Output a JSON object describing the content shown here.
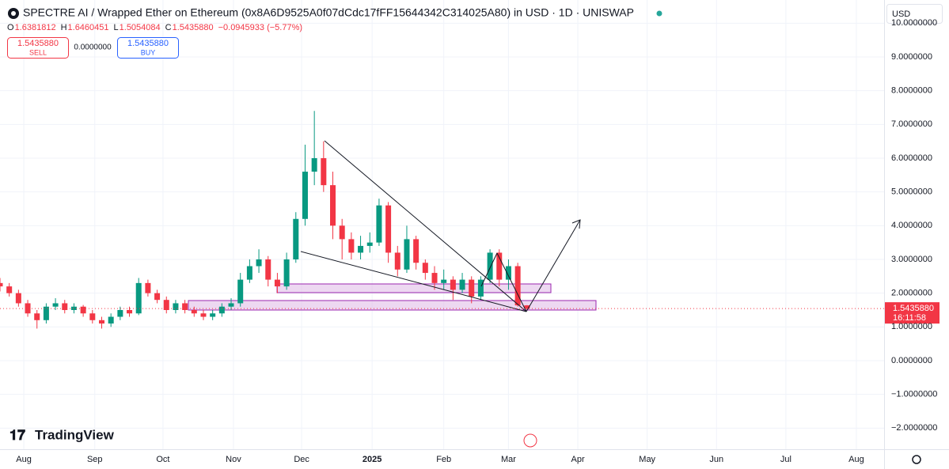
{
  "header": {
    "title": "SPECTRE AI / Wrapped Ether on Ethereum (0x8A6D9525A0f07dCdc17fFF15644342C314025A80) in USD · 1D · UNISWAP",
    "ohlc": [
      {
        "key": "O",
        "value": "1.6381812"
      },
      {
        "key": "H",
        "value": "1.6460451"
      },
      {
        "key": "L",
        "value": "1.5054084"
      },
      {
        "key": "C",
        "value": "1.5435880"
      }
    ],
    "change": "−0.0945933 (−5.77%)",
    "sell": {
      "price": "1.5435880",
      "label": "SELL"
    },
    "spread": "0.0000000",
    "buy": {
      "price": "1.5435880",
      "label": "BUY"
    },
    "currency": "USD",
    "brand": "TradingView",
    "last_price_label": "1.5435880",
    "countdown": "16:11:58"
  },
  "chart_data": {
    "type": "candlestick",
    "up_color": "#089981",
    "down_color": "#f23645",
    "grid": true,
    "x": [
      0,
      4,
      8,
      12,
      16,
      20,
      24,
      28,
      32,
      36,
      40,
      44,
      48,
      52,
      56,
      60,
      64,
      68,
      72,
      76,
      80,
      84,
      88,
      92,
      96,
      100,
      104,
      108,
      112,
      116,
      120,
      124,
      128,
      132,
      136,
      140,
      144,
      148,
      152,
      156,
      160,
      164,
      168,
      172,
      176,
      180,
      184,
      188,
      192,
      196,
      200,
      204,
      208,
      212,
      216,
      220,
      224,
      228
    ],
    "open": [
      2.3,
      2.2,
      2.0,
      1.7,
      1.4,
      1.2,
      1.6,
      1.7,
      1.5,
      1.6,
      1.4,
      1.2,
      1.1,
      1.3,
      1.5,
      1.4,
      2.3,
      2.0,
      1.8,
      1.5,
      1.7,
      1.5,
      1.4,
      1.3,
      1.4,
      1.6,
      1.7,
      2.4,
      2.8,
      3.0,
      2.4,
      2.2,
      3.0,
      4.2,
      5.6,
      6.0,
      5.2,
      4.0,
      3.6,
      3.2,
      3.4,
      3.5,
      4.6,
      3.2,
      2.7,
      3.6,
      2.9,
      2.6,
      2.3,
      2.4,
      2.1,
      2.4,
      1.9,
      2.4,
      3.2,
      2.4,
      2.8,
      1.6381812
    ],
    "high": [
      2.45,
      2.3,
      2.1,
      1.8,
      1.5,
      1.7,
      1.85,
      1.8,
      1.7,
      1.65,
      1.5,
      1.3,
      1.4,
      1.6,
      1.6,
      2.45,
      2.4,
      2.1,
      1.9,
      1.8,
      1.8,
      1.6,
      1.5,
      1.5,
      1.7,
      1.85,
      2.6,
      3.0,
      3.3,
      3.1,
      2.6,
      3.2,
      4.4,
      6.4,
      7.4,
      6.5,
      5.6,
      4.2,
      3.8,
      3.7,
      3.8,
      4.8,
      4.7,
      3.4,
      4.0,
      3.7,
      3.0,
      2.8,
      2.7,
      2.5,
      2.6,
      2.5,
      2.5,
      3.3,
      3.3,
      3.0,
      2.9,
      1.6460451
    ],
    "low": [
      2.05,
      1.9,
      1.6,
      1.3,
      0.95,
      1.1,
      1.5,
      1.4,
      1.4,
      1.3,
      1.1,
      0.95,
      1.0,
      1.2,
      1.3,
      1.35,
      1.9,
      1.7,
      1.4,
      1.4,
      1.4,
      1.3,
      1.2,
      1.2,
      1.3,
      1.5,
      1.6,
      2.3,
      2.6,
      2.2,
      2.0,
      2.1,
      2.9,
      4.0,
      5.2,
      5.0,
      3.6,
      3.0,
      3.0,
      3.0,
      3.2,
      3.4,
      2.9,
      2.5,
      2.6,
      2.7,
      2.4,
      2.1,
      2.1,
      1.8,
      2.0,
      1.7,
      1.8,
      2.3,
      2.2,
      2.1,
      1.6,
      1.5054084
    ],
    "close": [
      2.2,
      2.0,
      1.7,
      1.4,
      1.2,
      1.6,
      1.7,
      1.5,
      1.6,
      1.4,
      1.2,
      1.1,
      1.3,
      1.5,
      1.4,
      2.3,
      2.0,
      1.8,
      1.5,
      1.7,
      1.5,
      1.4,
      1.3,
      1.4,
      1.6,
      1.7,
      2.4,
      2.8,
      3.0,
      2.4,
      2.2,
      3.0,
      4.2,
      5.6,
      6.0,
      5.2,
      4.0,
      3.6,
      3.2,
      3.4,
      3.5,
      4.6,
      3.2,
      2.7,
      3.6,
      2.9,
      2.6,
      2.3,
      2.4,
      2.1,
      2.4,
      1.9,
      2.4,
      3.2,
      2.4,
      2.8,
      1.6381812,
      1.543588
    ],
    "xlim": [
      0,
      382.5
    ],
    "xticks": [
      {
        "value": 10.3,
        "label": "Aug"
      },
      {
        "value": 41,
        "label": "Sep"
      },
      {
        "value": 70.5,
        "label": "Oct"
      },
      {
        "value": 101,
        "label": "Nov"
      },
      {
        "value": 130.5,
        "label": "Dec"
      },
      {
        "value": 161,
        "label": "2025"
      },
      {
        "value": 192,
        "label": "Feb"
      },
      {
        "value": 220,
        "label": "Mar"
      },
      {
        "value": 250,
        "label": "Apr"
      },
      {
        "value": 280,
        "label": "May"
      },
      {
        "value": 310,
        "label": "Jun"
      },
      {
        "value": 340,
        "label": "Jul"
      },
      {
        "value": 370.5,
        "label": "Aug"
      }
    ],
    "ylim": [
      -2.625,
      10.687
    ],
    "yticks": [
      {
        "value": -2,
        "label": "−2.0000000"
      },
      {
        "value": -1,
        "label": "−1.0000000"
      },
      {
        "value": 0,
        "label": "0.0000000"
      },
      {
        "value": 1,
        "label": "1.0000000"
      },
      {
        "value": 2,
        "label": "2.0000000"
      },
      {
        "value": 3,
        "label": "3.0000000"
      },
      {
        "value": 4,
        "label": "4.0000000"
      },
      {
        "value": 5,
        "label": "5.0000000"
      },
      {
        "value": 6,
        "label": "6.0000000"
      },
      {
        "value": 7,
        "label": "7.0000000"
      },
      {
        "value": 8,
        "label": "8.0000000"
      },
      {
        "value": 9,
        "label": "9.0000000"
      },
      {
        "value": 10,
        "label": "10.0000000"
      }
    ]
  }
}
